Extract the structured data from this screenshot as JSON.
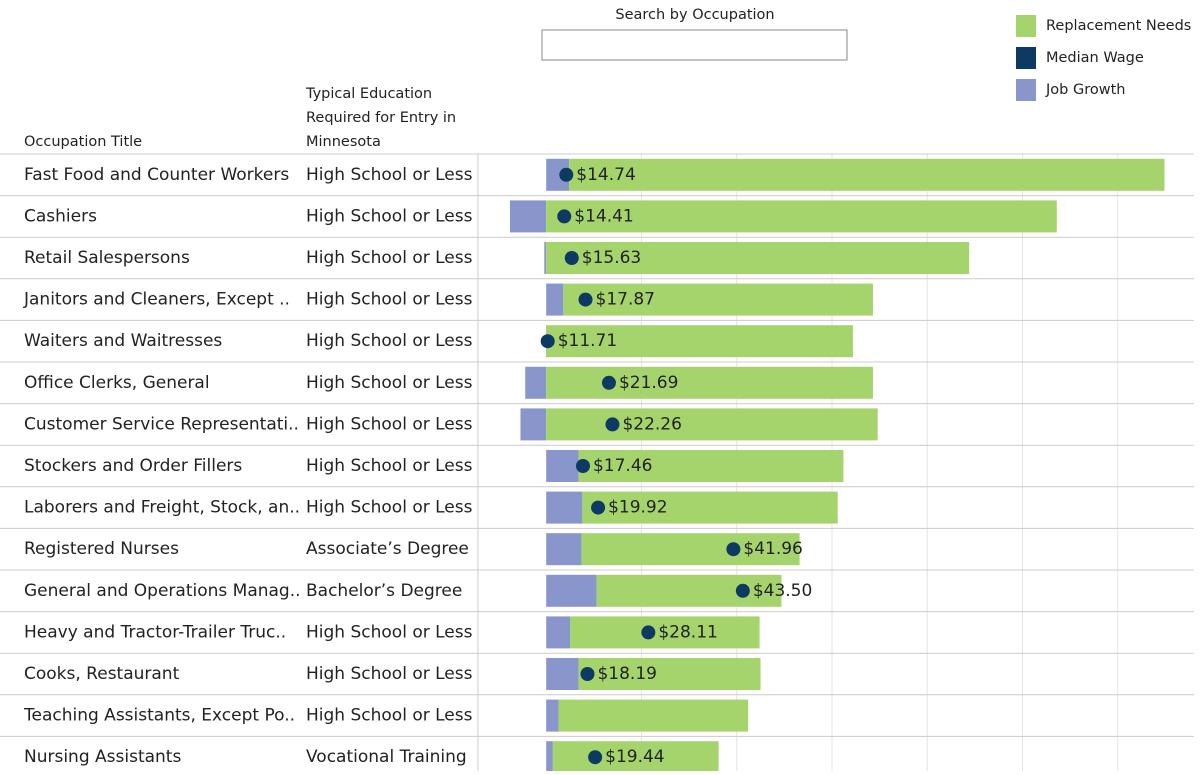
{
  "chart_data": {
    "type": "bar",
    "search_label": "Search by Occupation",
    "column_headers": [
      "Occupation Title",
      "Typical Education Required for Entry in Minnesota"
    ],
    "categories": [
      "Fast Food and Counter Workers",
      "Cashiers",
      "Retail Salespersons",
      "Janitors and Cleaners, Except ..",
      "Waiters and Waitresses",
      "Office Clerks, General",
      "Customer Service Representati..",
      "Stockers and Order Fillers",
      "Laborers and Freight, Stock, an..",
      "Registered Nurses",
      "General and Operations Manag..",
      "Heavy and Tractor-Trailer Truc..",
      "Cooks, Restaurant",
      "Teaching Assistants, Except Po..",
      "Nursing Assistants"
    ],
    "education": [
      "High School or Less",
      "High School or Less",
      "High School or Less",
      "High School or Less",
      "High School or Less",
      "High School or Less",
      "High School or Less",
      "High School or Less",
      "High School or Less",
      "Associate’s Degree",
      "Bachelor’s Degree",
      "High School or Less",
      "High School or Less",
      "High School or Less",
      "Vocational Training"
    ],
    "series": [
      {
        "name": "Replacement Needs",
        "color": "#a6d46c",
        "values": [
          62500,
          53600,
          44400,
          32500,
          32200,
          34300,
          34800,
          27800,
          26800,
          22900,
          19400,
          19900,
          19100,
          19900,
          17400
        ]
      },
      {
        "name": "Median Wage",
        "color": "#0c3a63",
        "axis": "wage",
        "values": [
          14.74,
          14.41,
          15.63,
          17.87,
          11.71,
          21.69,
          22.26,
          17.46,
          19.92,
          41.96,
          43.5,
          28.11,
          18.19,
          null,
          19.44
        ],
        "value_labels": [
          "$14.74",
          "$14.41",
          "$15.63",
          "$17.87",
          "$11.71",
          "$21.69",
          "$22.26",
          "$17.46",
          "$19.92",
          "$41.96",
          "$43.50",
          "$28.11",
          "$18.19",
          null,
          "$19.44"
        ]
      },
      {
        "name": "Job Growth",
        "color": "#8896cc",
        "values": [
          2400,
          -3800,
          -200,
          1800,
          0,
          -2200,
          -2700,
          3400,
          3800,
          3700,
          5300,
          2500,
          3400,
          1300,
          700
        ]
      }
    ],
    "xlim": [
      -7000,
      68000
    ],
    "xticks": [
      0,
      10000,
      20000,
      30000,
      40000,
      50000,
      60000
    ],
    "wage_xlim": [
      0.6,
      117
    ],
    "grid": true
  }
}
